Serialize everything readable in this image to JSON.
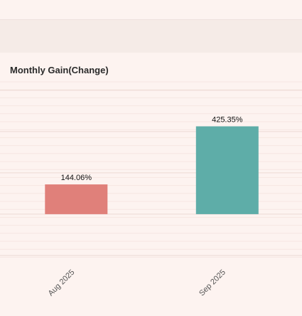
{
  "chart_data": {
    "type": "bar",
    "title": "Monthly Gain(Change)",
    "categories": [
      "Aug 2025",
      "Sep 2025"
    ],
    "values": [
      144.06,
      425.35
    ],
    "value_labels": [
      "144.06%",
      "425.35%"
    ],
    "xlabel": "",
    "ylabel": "",
    "ylim": [
      -244.97,
      658.19
    ],
    "grid": true,
    "colors": [
      "#e0807a",
      "#5eada8"
    ]
  }
}
